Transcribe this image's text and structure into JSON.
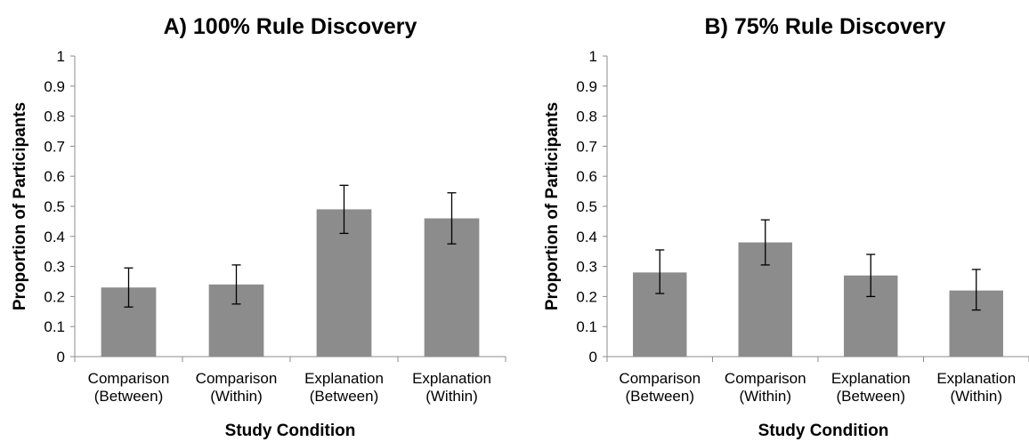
{
  "chart_data": [
    {
      "type": "bar",
      "title": "A) 100% Rule Discovery",
      "xlabel": "Study Condition",
      "ylabel": "Proportion of Participants",
      "ylim": [
        0,
        1
      ],
      "yticks": [
        "0",
        "0.1",
        "0.2",
        "0.3",
        "0.4",
        "0.5",
        "0.6",
        "0.7",
        "0.8",
        "0.9",
        "1"
      ],
      "categories": [
        [
          "Comparison",
          "(Between)"
        ],
        [
          "Comparison",
          "(Within)"
        ],
        [
          "Explanation",
          "(Between)"
        ],
        [
          "Explanation",
          "(Within)"
        ]
      ],
      "values": [
        0.23,
        0.24,
        0.49,
        0.46
      ],
      "error": [
        [
          0.165,
          0.295
        ],
        [
          0.175,
          0.305
        ],
        [
          0.41,
          0.57
        ],
        [
          0.375,
          0.545
        ]
      ],
      "bar_color": "#8c8c8c",
      "grid": false,
      "legend": "none"
    },
    {
      "type": "bar",
      "title": "B) 75% Rule Discovery",
      "xlabel": "Study Condition",
      "ylabel": "Proportion of Participants",
      "ylim": [
        0,
        1
      ],
      "yticks": [
        "0",
        "0.1",
        "0.2",
        "0.3",
        "0.4",
        "0.5",
        "0.6",
        "0.7",
        "0.8",
        "0.9",
        "1"
      ],
      "categories": [
        [
          "Comparison",
          "(Between)"
        ],
        [
          "Comparison",
          "(Within)"
        ],
        [
          "Explanation",
          "(Between)"
        ],
        [
          "Explanation",
          "(Within)"
        ]
      ],
      "values": [
        0.28,
        0.38,
        0.27,
        0.22
      ],
      "error": [
        [
          0.21,
          0.355
        ],
        [
          0.305,
          0.455
        ],
        [
          0.2,
          0.34
        ],
        [
          0.155,
          0.29
        ]
      ],
      "bar_color": "#8c8c8c",
      "grid": false,
      "legend": "none"
    }
  ]
}
